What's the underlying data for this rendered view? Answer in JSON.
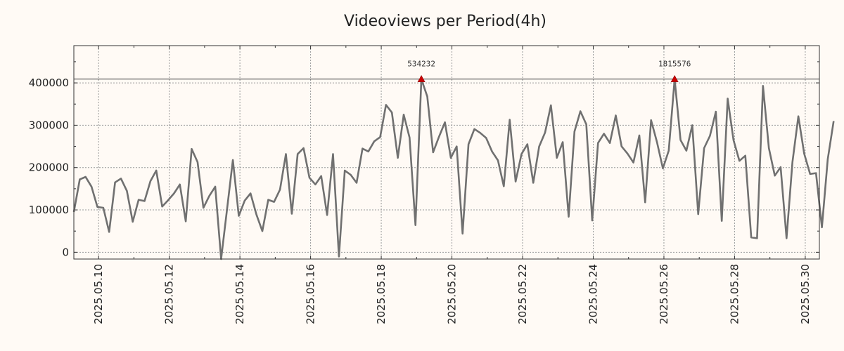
{
  "chart_data": {
    "type": "line",
    "title": "Videoviews per Period(4h)",
    "xlabel": "",
    "ylabel": "",
    "x_axis": {
      "start_date": "2025.05.09",
      "min": 0.3,
      "max": 21.4,
      "tick_positions": [
        1,
        3,
        5,
        7,
        9,
        11,
        13,
        15,
        17,
        19,
        21
      ],
      "tick_labels": [
        "2025.05.10",
        "2025.05.12",
        "2025.05.14",
        "2025.05.16",
        "2025.05.18",
        "2025.05.20",
        "2025.05.22",
        "2025.05.24",
        "2025.05.26",
        "2025.05.28",
        "2025.05.30"
      ],
      "point_step_days": 0.1667
    },
    "y_axis": {
      "min": -16000,
      "max": 488000,
      "ticks": [
        0,
        100000,
        200000,
        300000,
        400000
      ],
      "tick_labels": [
        "0",
        "100000",
        "200000",
        "300000",
        "400000"
      ]
    },
    "cap_line": 409000,
    "grid": true,
    "series": [
      {
        "name": "Videoviews",
        "color": "#707070",
        "values": [
          95000,
          172000,
          178000,
          155000,
          107000,
          105000,
          48000,
          165000,
          174000,
          145000,
          72000,
          124000,
          121000,
          168000,
          193000,
          108000,
          123000,
          139000,
          160000,
          73000,
          244000,
          213000,
          105000,
          133000,
          155000,
          -16000,
          100000,
          218000,
          86000,
          122000,
          139000,
          89000,
          50000,
          124000,
          119000,
          148000,
          232000,
          91000,
          232000,
          246000,
          176000,
          160000,
          180000,
          88000,
          232000,
          -10000,
          193000,
          183000,
          164000,
          245000,
          238000,
          262000,
          272000,
          348000,
          330000,
          223000,
          325000,
          271000,
          64000,
          409000,
          368000,
          236000,
          273000,
          307000,
          223000,
          250000,
          44000,
          255000,
          291000,
          282000,
          270000,
          238000,
          217000,
          156000,
          313000,
          167000,
          232000,
          255000,
          164000,
          250000,
          283000,
          347000,
          223000,
          260000,
          84000,
          285000,
          333000,
          302000,
          75000,
          258000,
          280000,
          258000,
          323000,
          250000,
          233000,
          212000,
          276000,
          118000,
          312000,
          260000,
          198000,
          240000,
          409000,
          265000,
          240000,
          300000,
          90000,
          246000,
          275000,
          332000,
          74000,
          363000,
          265000,
          216000,
          228000,
          35000,
          33000,
          393000,
          246000,
          181000,
          201000,
          33000,
          213000,
          321000,
          233000,
          185000,
          187000,
          59000,
          220000,
          310000
        ]
      }
    ],
    "annotations": [
      {
        "index": 59,
        "value": 409000,
        "label": "534232",
        "marker": "triangle-up",
        "color": "#cc0000"
      },
      {
        "index": 102,
        "value": 409000,
        "label": "1815576",
        "marker": "triangle-up",
        "color": "#cc0000"
      }
    ]
  }
}
